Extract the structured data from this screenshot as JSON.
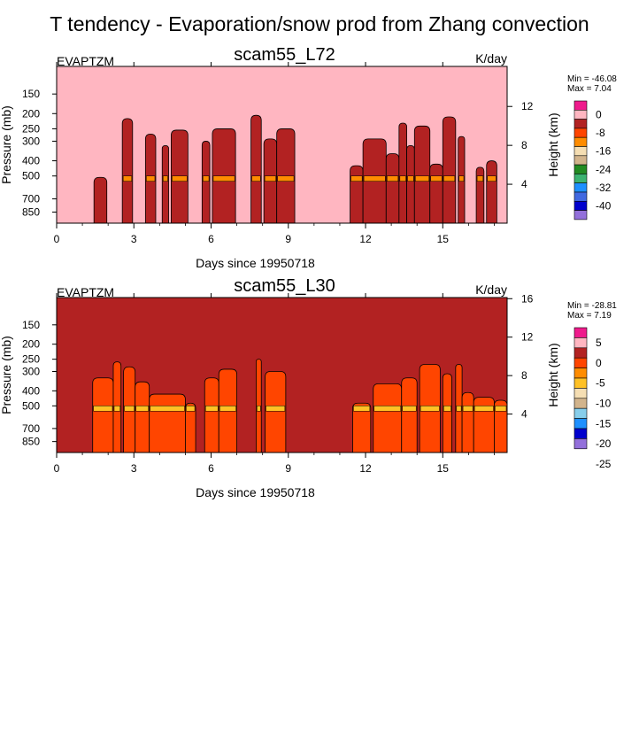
{
  "suptitle": "T tendency - Evaporation/snow prod from Zhang convection",
  "chart_data": [
    {
      "type": "contour",
      "title": "scam55_L72",
      "left_label": "EVAPTZM",
      "right_label": "K/day",
      "xlabel": "Days since 19950718",
      "ylabel": "Pressure (mb)",
      "y2label": "Height (km)",
      "xlim": [
        0,
        17.5
      ],
      "xticks": [
        0,
        3,
        6,
        9,
        12,
        15
      ],
      "xtick_labels": [
        "0",
        "3",
        "6",
        "9",
        "12",
        "15"
      ],
      "ylim_mb": [
        1000,
        100
      ],
      "yticks_mb": [
        150,
        200,
        250,
        300,
        400,
        500,
        700,
        850
      ],
      "ytick_labels": [
        "150",
        "200",
        "250",
        "300",
        "400",
        "500",
        "700",
        "850"
      ],
      "y2ticks_km": [
        4,
        8,
        12
      ],
      "y2tick_labels": [
        "4",
        "8",
        "12"
      ],
      "minmax": {
        "min_label": "Min = -46.08",
        "max_label": "Max =   7.04",
        "min": -46.08,
        "max": 7.04
      },
      "colorbar_colors": [
        "#ef1b8c",
        "#ffb6c1",
        "#b22222",
        "#ff4500",
        "#ff8c00",
        "#f5deb3",
        "#d2b48c",
        "#228b22",
        "#3cb371",
        "#1e90ff",
        "#4169e1",
        "#0000cd",
        "#9370db"
      ],
      "colorbar_labels": [
        "0",
        "-8",
        "-16",
        "-24",
        "-32",
        "-40"
      ],
      "background_color": "#ffb6c1",
      "active_color": "#b22222",
      "events": [
        {
          "x0": 1.45,
          "x1": 1.95,
          "top_mb": 510
        },
        {
          "x0": 2.55,
          "x1": 2.95,
          "top_mb": 215
        },
        {
          "x0": 3.45,
          "x1": 3.85,
          "top_mb": 270
        },
        {
          "x0": 4.1,
          "x1": 4.35,
          "top_mb": 320
        },
        {
          "x0": 4.45,
          "x1": 5.1,
          "top_mb": 255
        },
        {
          "x0": 5.65,
          "x1": 5.95,
          "top_mb": 300
        },
        {
          "x0": 6.05,
          "x1": 6.95,
          "top_mb": 250
        },
        {
          "x0": 7.55,
          "x1": 7.95,
          "top_mb": 205
        },
        {
          "x0": 8.05,
          "x1": 8.55,
          "top_mb": 290
        },
        {
          "x0": 8.55,
          "x1": 9.25,
          "top_mb": 250
        },
        {
          "x0": 11.4,
          "x1": 11.9,
          "top_mb": 430
        },
        {
          "x0": 11.9,
          "x1": 12.8,
          "top_mb": 290
        },
        {
          "x0": 12.8,
          "x1": 13.3,
          "top_mb": 360
        },
        {
          "x0": 13.3,
          "x1": 13.6,
          "top_mb": 230
        },
        {
          "x0": 13.6,
          "x1": 13.9,
          "top_mb": 320
        },
        {
          "x0": 13.9,
          "x1": 14.5,
          "top_mb": 240
        },
        {
          "x0": 14.5,
          "x1": 15.0,
          "top_mb": 420
        },
        {
          "x0": 15.0,
          "x1": 15.5,
          "top_mb": 210
        },
        {
          "x0": 15.6,
          "x1": 15.85,
          "top_mb": 280
        },
        {
          "x0": 16.3,
          "x1": 16.6,
          "top_mb": 440
        },
        {
          "x0": 16.7,
          "x1": 17.1,
          "top_mb": 400
        }
      ]
    },
    {
      "type": "contour",
      "title": "scam55_L30",
      "left_label": "EVAPTZM",
      "right_label": "K/day",
      "xlabel": "Days since 19950718",
      "ylabel": "Pressure (mb)",
      "y2label": "Height (km)",
      "xlim": [
        0,
        17.5
      ],
      "xticks": [
        0,
        3,
        6,
        9,
        12,
        15
      ],
      "xtick_labels": [
        "0",
        "3",
        "6",
        "9",
        "12",
        "15"
      ],
      "ylim_mb": [
        1000,
        100
      ],
      "yticks_mb": [
        150,
        200,
        250,
        300,
        400,
        500,
        700,
        850
      ],
      "ytick_labels": [
        "150",
        "200",
        "250",
        "300",
        "400",
        "500",
        "700",
        "850"
      ],
      "y2ticks_km": [
        4,
        8,
        12,
        16
      ],
      "y2tick_labels": [
        "4",
        "8",
        "12",
        "16"
      ],
      "minmax": {
        "min_label": "Min = -28.81",
        "max_label": "Max =   7.19",
        "min": -28.81,
        "max": 7.19
      },
      "colorbar_colors": [
        "#ef1b8c",
        "#ffb6c1",
        "#b22222",
        "#ff4500",
        "#ff8c00",
        "#ffc125",
        "#f5deb3",
        "#d2b48c",
        "#87ceeb",
        "#1e90ff",
        "#0000cd",
        "#9370db"
      ],
      "colorbar_labels": [
        "5",
        "0",
        "-5",
        "-10",
        "-15",
        "-20",
        "-25"
      ],
      "background_color": "#b22222",
      "active_color": "#ff4500",
      "events": [
        {
          "x0": 1.4,
          "x1": 2.2,
          "top_mb": 330
        },
        {
          "x0": 2.2,
          "x1": 2.5,
          "top_mb": 260
        },
        {
          "x0": 2.6,
          "x1": 3.05,
          "top_mb": 280
        },
        {
          "x0": 3.05,
          "x1": 3.6,
          "top_mb": 350
        },
        {
          "x0": 3.6,
          "x1": 5.0,
          "top_mb": 420
        },
        {
          "x0": 5.0,
          "x1": 5.4,
          "top_mb": 480
        },
        {
          "x0": 5.75,
          "x1": 6.3,
          "top_mb": 330
        },
        {
          "x0": 6.3,
          "x1": 7.0,
          "top_mb": 290
        },
        {
          "x0": 7.75,
          "x1": 7.95,
          "top_mb": 250
        },
        {
          "x0": 8.1,
          "x1": 8.9,
          "top_mb": 300
        },
        {
          "x0": 11.5,
          "x1": 12.2,
          "top_mb": 480
        },
        {
          "x0": 12.3,
          "x1": 13.4,
          "top_mb": 360
        },
        {
          "x0": 13.4,
          "x1": 14.0,
          "top_mb": 330
        },
        {
          "x0": 14.1,
          "x1": 14.9,
          "top_mb": 270
        },
        {
          "x0": 15.0,
          "x1": 15.35,
          "top_mb": 310
        },
        {
          "x0": 15.5,
          "x1": 15.75,
          "top_mb": 270
        },
        {
          "x0": 15.75,
          "x1": 16.2,
          "top_mb": 410
        },
        {
          "x0": 16.2,
          "x1": 17.0,
          "top_mb": 440
        },
        {
          "x0": 17.0,
          "x1": 17.5,
          "top_mb": 460
        }
      ]
    }
  ]
}
